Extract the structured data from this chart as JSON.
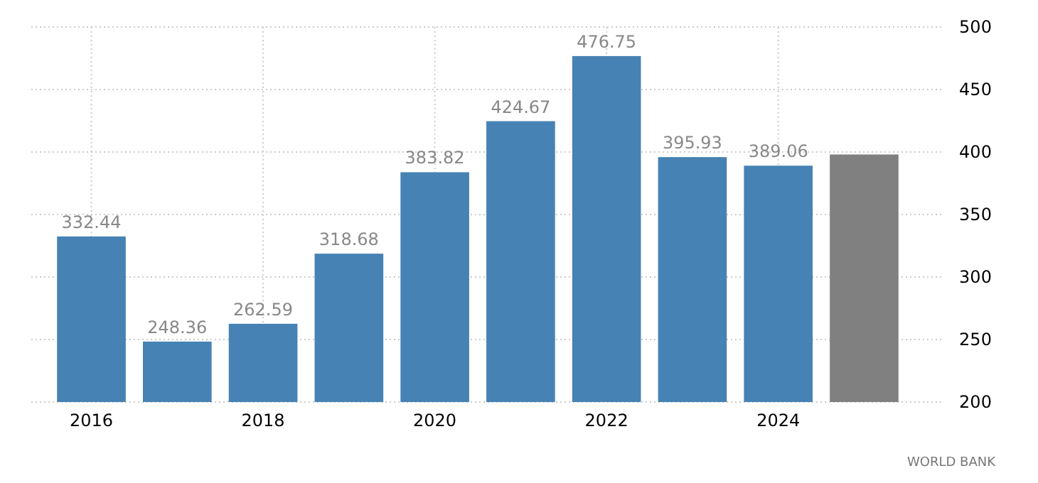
{
  "chart_data": {
    "type": "bar",
    "categories": [
      "2016",
      null,
      "2018",
      null,
      "2020",
      null,
      "2022",
      null,
      "2024",
      null
    ],
    "values": [
      332.44,
      248.36,
      262.59,
      318.68,
      383.82,
      424.67,
      476.75,
      395.93,
      389.06,
      398
    ],
    "colors": [
      "#4682b4",
      "#4682b4",
      "#4682b4",
      "#4682b4",
      "#4682b4",
      "#4682b4",
      "#4682b4",
      "#4682b4",
      "#4682b4",
      "#808080"
    ],
    "value_labels": [
      "332.44",
      "248.36",
      "262.59",
      "318.68",
      "383.82",
      "424.67",
      "476.75",
      "395.93",
      "389.06",
      null
    ],
    "ylim": [
      200,
      500
    ],
    "yticks": [
      200,
      250,
      300,
      350,
      400,
      450,
      500
    ],
    "grid": true,
    "annotations": [
      "WORLD BANK"
    ]
  }
}
